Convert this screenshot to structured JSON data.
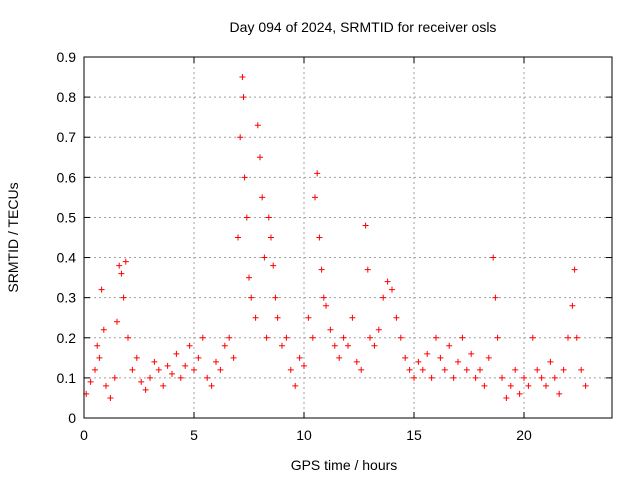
{
  "chart_data": {
    "type": "scatter",
    "title": "Day 094 of 2024, SRMTID for receiver osls",
    "xlabel": "GPS time / hours",
    "ylabel": "SRMTID / TECUs",
    "xlim": [
      0,
      24
    ],
    "ylim": [
      0,
      0.9
    ],
    "xticks": [
      0,
      5,
      10,
      15,
      20
    ],
    "xtick_labels": [
      "0",
      "5",
      "10",
      "15",
      "20"
    ],
    "yticks": [
      0,
      0.1,
      0.2,
      0.3,
      0.4,
      0.5,
      0.6,
      0.7,
      0.8,
      0.9
    ],
    "ytick_labels": [
      "0",
      "0.1",
      "0.2",
      "0.3",
      "0.4",
      "0.5",
      "0.6",
      "0.7",
      "0.8",
      "0.9"
    ],
    "grid": true,
    "marker": "+",
    "color": "#ff0000",
    "series": [
      {
        "name": "SRMTID",
        "points": [
          [
            0.1,
            0.06
          ],
          [
            0.3,
            0.09
          ],
          [
            0.5,
            0.12
          ],
          [
            0.6,
            0.18
          ],
          [
            0.7,
            0.15
          ],
          [
            0.8,
            0.32
          ],
          [
            0.9,
            0.22
          ],
          [
            1.0,
            0.08
          ],
          [
            1.2,
            0.05
          ],
          [
            1.4,
            0.1
          ],
          [
            1.5,
            0.24
          ],
          [
            1.6,
            0.38
          ],
          [
            1.7,
            0.36
          ],
          [
            1.8,
            0.3
          ],
          [
            1.9,
            0.39
          ],
          [
            2.0,
            0.2
          ],
          [
            2.2,
            0.12
          ],
          [
            2.4,
            0.15
          ],
          [
            2.6,
            0.09
          ],
          [
            2.8,
            0.07
          ],
          [
            3.0,
            0.1
          ],
          [
            3.2,
            0.14
          ],
          [
            3.4,
            0.12
          ],
          [
            3.6,
            0.08
          ],
          [
            3.8,
            0.13
          ],
          [
            4.0,
            0.11
          ],
          [
            4.2,
            0.16
          ],
          [
            4.4,
            0.1
          ],
          [
            4.6,
            0.13
          ],
          [
            4.8,
            0.18
          ],
          [
            5.0,
            0.12
          ],
          [
            5.2,
            0.15
          ],
          [
            5.4,
            0.2
          ],
          [
            5.6,
            0.1
          ],
          [
            5.8,
            0.08
          ],
          [
            6.0,
            0.14
          ],
          [
            6.2,
            0.12
          ],
          [
            6.4,
            0.18
          ],
          [
            6.6,
            0.2
          ],
          [
            6.8,
            0.15
          ],
          [
            7.0,
            0.45
          ],
          [
            7.1,
            0.7
          ],
          [
            7.2,
            0.85
          ],
          [
            7.25,
            0.8
          ],
          [
            7.3,
            0.6
          ],
          [
            7.4,
            0.5
          ],
          [
            7.5,
            0.35
          ],
          [
            7.6,
            0.3
          ],
          [
            7.8,
            0.25
          ],
          [
            7.9,
            0.73
          ],
          [
            8.0,
            0.65
          ],
          [
            8.1,
            0.55
          ],
          [
            8.2,
            0.4
          ],
          [
            8.3,
            0.2
          ],
          [
            8.4,
            0.5
          ],
          [
            8.5,
            0.45
          ],
          [
            8.6,
            0.38
          ],
          [
            8.7,
            0.3
          ],
          [
            8.8,
            0.25
          ],
          [
            9.0,
            0.18
          ],
          [
            9.2,
            0.2
          ],
          [
            9.4,
            0.12
          ],
          [
            9.6,
            0.08
          ],
          [
            9.8,
            0.15
          ],
          [
            10.0,
            0.13
          ],
          [
            10.2,
            0.25
          ],
          [
            10.4,
            0.2
          ],
          [
            10.5,
            0.55
          ],
          [
            10.6,
            0.61
          ],
          [
            10.7,
            0.45
          ],
          [
            10.8,
            0.37
          ],
          [
            10.9,
            0.3
          ],
          [
            11.0,
            0.28
          ],
          [
            11.2,
            0.22
          ],
          [
            11.4,
            0.18
          ],
          [
            11.6,
            0.15
          ],
          [
            11.8,
            0.2
          ],
          [
            12.0,
            0.18
          ],
          [
            12.2,
            0.25
          ],
          [
            12.4,
            0.14
          ],
          [
            12.6,
            0.12
          ],
          [
            12.8,
            0.48
          ],
          [
            12.9,
            0.37
          ],
          [
            13.0,
            0.2
          ],
          [
            13.2,
            0.18
          ],
          [
            13.4,
            0.22
          ],
          [
            13.6,
            0.3
          ],
          [
            13.8,
            0.34
          ],
          [
            14.0,
            0.32
          ],
          [
            14.2,
            0.25
          ],
          [
            14.4,
            0.2
          ],
          [
            14.6,
            0.15
          ],
          [
            14.8,
            0.12
          ],
          [
            15.0,
            0.1
          ],
          [
            15.2,
            0.14
          ],
          [
            15.4,
            0.12
          ],
          [
            15.6,
            0.16
          ],
          [
            15.8,
            0.1
          ],
          [
            16.0,
            0.2
          ],
          [
            16.2,
            0.15
          ],
          [
            16.4,
            0.12
          ],
          [
            16.6,
            0.18
          ],
          [
            16.8,
            0.1
          ],
          [
            17.0,
            0.14
          ],
          [
            17.2,
            0.2
          ],
          [
            17.4,
            0.12
          ],
          [
            17.6,
            0.16
          ],
          [
            17.8,
            0.1
          ],
          [
            18.0,
            0.12
          ],
          [
            18.2,
            0.08
          ],
          [
            18.4,
            0.15
          ],
          [
            18.6,
            0.4
          ],
          [
            18.7,
            0.3
          ],
          [
            18.8,
            0.2
          ],
          [
            19.0,
            0.1
          ],
          [
            19.2,
            0.05
          ],
          [
            19.4,
            0.08
          ],
          [
            19.6,
            0.12
          ],
          [
            19.8,
            0.06
          ],
          [
            20.0,
            0.1
          ],
          [
            20.2,
            0.08
          ],
          [
            20.4,
            0.2
          ],
          [
            20.6,
            0.12
          ],
          [
            20.8,
            0.1
          ],
          [
            21.0,
            0.08
          ],
          [
            21.2,
            0.14
          ],
          [
            21.4,
            0.1
          ],
          [
            21.6,
            0.06
          ],
          [
            21.8,
            0.12
          ],
          [
            22.0,
            0.2
          ],
          [
            22.2,
            0.28
          ],
          [
            22.3,
            0.37
          ],
          [
            22.4,
            0.2
          ],
          [
            22.6,
            0.12
          ],
          [
            22.8,
            0.08
          ]
        ]
      }
    ]
  }
}
